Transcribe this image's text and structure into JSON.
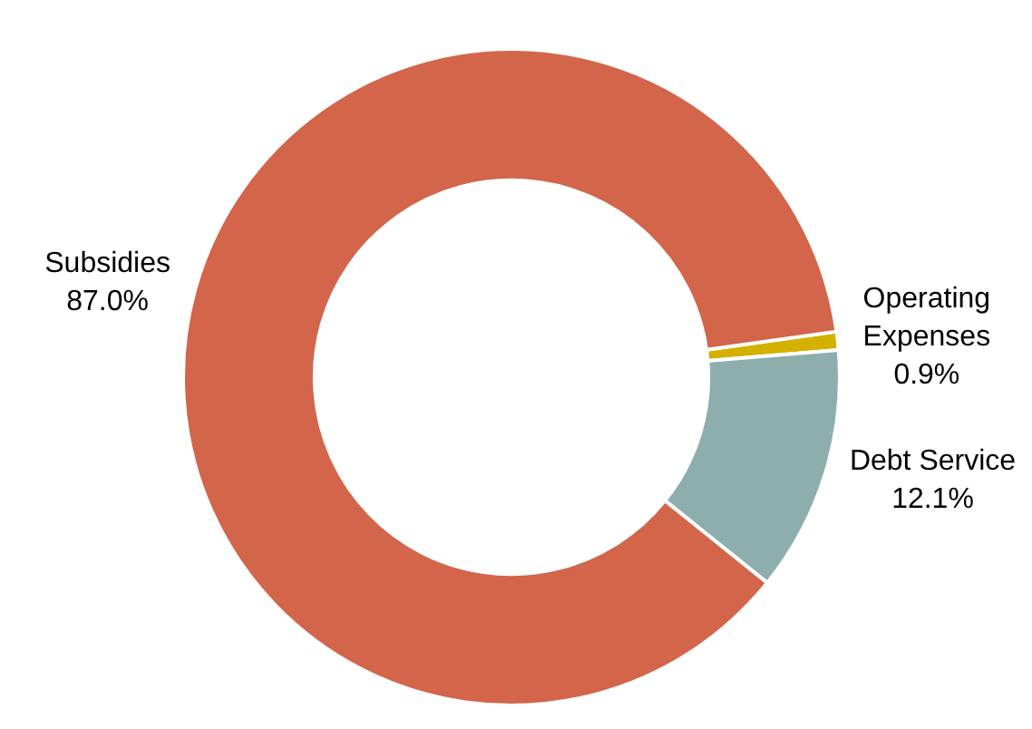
{
  "chart_data": {
    "type": "donut",
    "categories": [
      "Operating Expenses",
      "Debt Service",
      "Subsidies"
    ],
    "values": [
      0.9,
      12.1,
      87.0
    ],
    "value_labels": [
      "0.9%",
      "12.1%",
      "87.0%"
    ],
    "colors": [
      "#d4b000",
      "#8eaeae",
      "#d2654a"
    ],
    "legend": false
  }
}
